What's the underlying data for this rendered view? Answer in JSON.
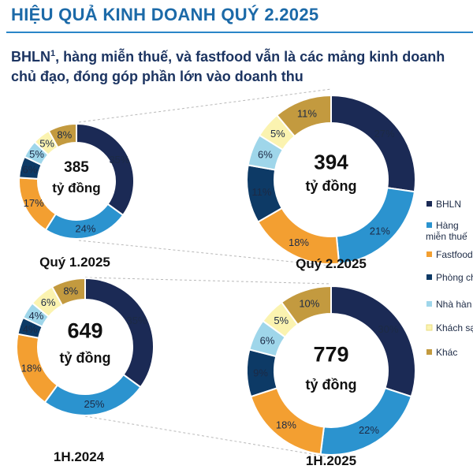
{
  "header": {
    "title": "HIỆU QUẢ KINH DOANH QUÝ 2.2025",
    "subtitle_part1": "BHLN",
    "subtitle_sup": "1",
    "subtitle_part2": ", hàng miễn thuế, và fastfood vẫn là các mảng kinh doanh",
    "subtitle_line2": "chủ đạo, đóng góp phần lớn vào doanh thu"
  },
  "legend": [
    {
      "label": "BHLN",
      "color": "#1b2a55"
    },
    {
      "label": "Hàng",
      "label2": "miễn thuế",
      "color": "#2b93cf"
    },
    {
      "label": "Fastfood",
      "color": "#f39f31"
    },
    {
      "label": "Phòng ch",
      "color": "#0d3a66"
    },
    {
      "label": "Nhà hàn",
      "color": "#9fd6ea"
    },
    {
      "label": "Khách sạ",
      "color": "#fbf3b0"
    },
    {
      "label": "Khác",
      "color": "#c39a3f"
    }
  ],
  "chart_data": [
    {
      "type": "pie",
      "period": "Quý 1.2025",
      "total": "385",
      "unit": "tỷ đồng",
      "categories": [
        "BHLN",
        "Hàng miễn thuế",
        "Fastfood",
        "Phòng chờ",
        "Nhà hàng",
        "Khách sạn",
        "Khác"
      ],
      "values": [
        35,
        24,
        17,
        6,
        5,
        5,
        8
      ],
      "labels": [
        "35%",
        "24%",
        "17%",
        "6%",
        "5%",
        "5%",
        "8%"
      ]
    },
    {
      "type": "pie",
      "period": "Quý 2.2025",
      "total": "394",
      "unit": "tỷ đồng",
      "categories": [
        "BHLN",
        "Hàng miễn thuế",
        "Fastfood",
        "Phòng chờ",
        "Nhà hàng",
        "Khách sạn",
        "Khác"
      ],
      "values": [
        27,
        21,
        18,
        11,
        6,
        5,
        11
      ],
      "labels": [
        "27%",
        "21%",
        "18%",
        "11%",
        "6%",
        "5%",
        "11%"
      ]
    },
    {
      "type": "pie",
      "period": "1H.2024",
      "total": "649",
      "unit": "tỷ đồng",
      "categories": [
        "BHLN",
        "Hàng miễn thuế",
        "Fastfood",
        "Phòng chờ",
        "Nhà hàng",
        "Khách sạn",
        "Khác"
      ],
      "values": [
        35,
        25,
        18,
        4,
        4,
        6,
        8
      ],
      "labels": [
        "35%",
        "25%",
        "18%",
        "4%",
        "4%",
        "6%",
        "8%"
      ]
    },
    {
      "type": "pie",
      "period": "1H.2025",
      "total": "779",
      "unit": "tỷ đồng",
      "categories": [
        "BHLN",
        "Hàng miễn thuế",
        "Fastfood",
        "Phòng chờ",
        "Nhà hàng",
        "Khách sạn",
        "Khác"
      ],
      "values": [
        30,
        22,
        18,
        9,
        6,
        5,
        10
      ],
      "labels": [
        "30%",
        "22%",
        "18%",
        "9%",
        "6%",
        "5%",
        "10%"
      ]
    }
  ]
}
